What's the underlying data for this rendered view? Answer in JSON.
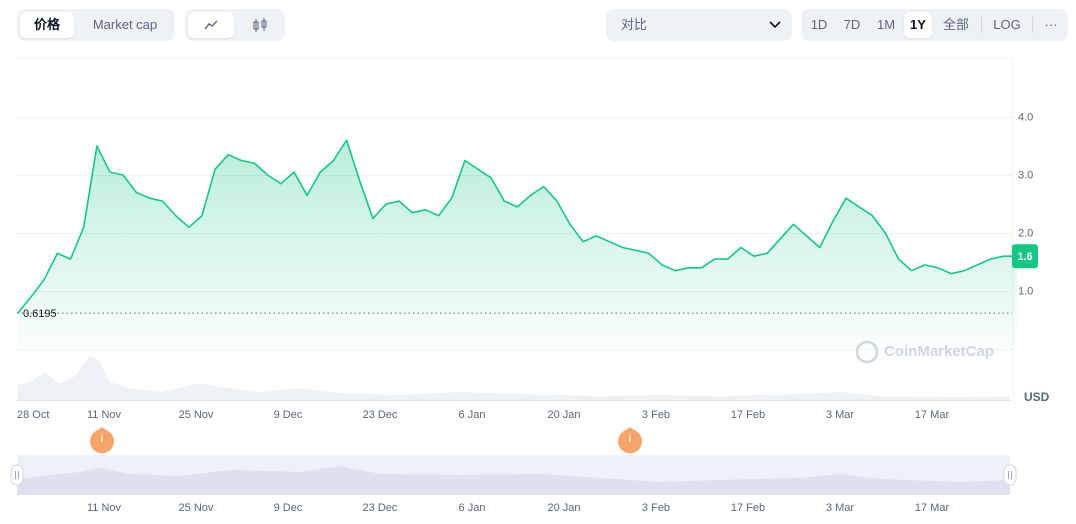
{
  "toolbar": {
    "price_tab": "价格",
    "market_cap_tab": "Market cap",
    "compare": "对比",
    "ranges": [
      "1D",
      "7D",
      "1M",
      "1Y",
      "全部"
    ],
    "log": "LOG",
    "more": "···"
  },
  "chart_data": {
    "type": "line",
    "color": "#16c784",
    "categories": [
      "28 Oct",
      null,
      null,
      null,
      null,
      null,
      null,
      "11 Nov",
      null,
      null,
      null,
      null,
      null,
      null,
      "25 Nov",
      null,
      null,
      null,
      null,
      null,
      null,
      "9 Dec",
      null,
      null,
      null,
      null,
      null,
      null,
      "23 Dec",
      null,
      null,
      null,
      null,
      null,
      null,
      "6 Jan",
      null,
      null,
      null,
      null,
      null,
      null,
      "20 Jan",
      null,
      null,
      null,
      null,
      null,
      null,
      "3 Feb",
      null,
      null,
      null,
      null,
      null,
      null,
      "17 Feb",
      null,
      null,
      null,
      null,
      null,
      null,
      "3 Mar",
      null,
      null,
      null,
      null,
      null,
      null,
      "17 Mar",
      null,
      null,
      null,
      null,
      null,
      null
    ],
    "series": [
      {
        "name": "USD",
        "color": "#16c784",
        "values": [
          0.62,
          0.9,
          1.2,
          1.65,
          1.55,
          2.1,
          3.5,
          3.05,
          3.0,
          2.7,
          2.6,
          2.55,
          2.3,
          2.1,
          2.3,
          3.1,
          3.35,
          3.25,
          3.2,
          3.0,
          2.85,
          3.05,
          2.65,
          3.05,
          3.25,
          3.6,
          2.9,
          2.25,
          2.5,
          2.55,
          2.35,
          2.4,
          2.3,
          2.6,
          3.25,
          3.1,
          2.95,
          2.55,
          2.45,
          2.65,
          2.8,
          2.55,
          2.15,
          1.85,
          1.95,
          1.85,
          1.75,
          1.7,
          1.65,
          1.45,
          1.35,
          1.4,
          1.4,
          1.55,
          1.55,
          1.75,
          1.6,
          1.65,
          1.9,
          2.15,
          1.95,
          1.75,
          2.2,
          2.6,
          2.45,
          2.3,
          2.0,
          1.55,
          1.35,
          1.45,
          1.4,
          1.3,
          1.35,
          1.45,
          1.55,
          1.6,
          1.6
        ]
      }
    ],
    "ylim": [
      0,
      5
    ],
    "yticks": [
      {
        "value": 1,
        "label": "1.0"
      },
      {
        "value": 2,
        "label": "2.0"
      },
      {
        "value": 3,
        "label": "3.0"
      },
      {
        "value": 4,
        "label": "4.0"
      }
    ],
    "grid": true,
    "min_value": 0.6195,
    "current_value": 1.6,
    "currency": "USD",
    "watermark": "CoinMarketCap",
    "events": [
      "i",
      "i"
    ]
  },
  "navigator": {
    "labels": [
      "11 Nov",
      "25 Nov",
      "9 Dec",
      "23 Dec",
      "6 Jan",
      "20 Jan",
      "3 Feb",
      "17 Feb",
      "3 Mar",
      "17 Mar"
    ]
  }
}
